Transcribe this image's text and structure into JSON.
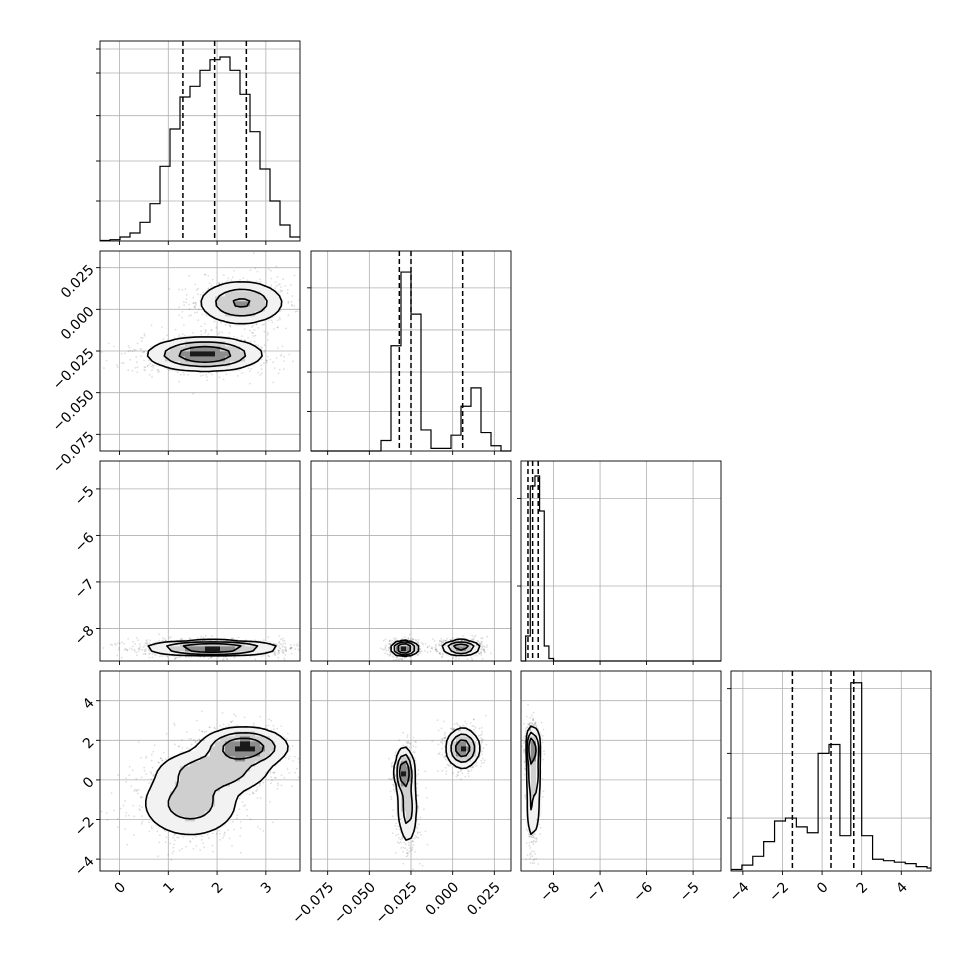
{
  "chart_data": {
    "type": "corner",
    "n_params": 4,
    "grid": true,
    "colors": {
      "line": "#000000",
      "grid": "#b0b0b0",
      "points": "#000000"
    },
    "params": [
      {
        "range": [
          -0.4,
          3.7
        ],
        "ticks": [
          0,
          1,
          2,
          3
        ],
        "tick_labels": [
          "0",
          "1",
          "2",
          "3"
        ]
      },
      {
        "range": [
          -0.085,
          0.035
        ],
        "ticks": [
          -0.075,
          -0.05,
          -0.025,
          0.0,
          0.025
        ],
        "tick_labels": [
          "−0.075",
          "−0.050",
          "−0.025",
          "0.000",
          "0.025"
        ]
      },
      {
        "range": [
          -8.7,
          -4.4
        ],
        "ticks": [
          -8,
          -7,
          -6,
          -5
        ],
        "tick_labels": [
          "−8",
          "−7",
          "−6",
          "−5"
        ]
      },
      {
        "range": [
          -4.6,
          5.5
        ],
        "ticks": [
          -4,
          -2,
          0,
          2,
          4
        ],
        "tick_labels": [
          "−4",
          "−2",
          "0",
          "2",
          "4"
        ]
      }
    ],
    "quantiles": [
      [
        1.3,
        1.95,
        2.6
      ],
      [
        -0.032,
        -0.025,
        0.006
      ],
      [
        -8.55,
        -8.45,
        -8.33
      ],
      [
        -1.5,
        0.45,
        1.6
      ]
    ],
    "histograms": [
      {
        "edges": [
          -0.4,
          -0.195,
          0.01,
          0.215,
          0.42,
          0.625,
          0.83,
          1.035,
          1.24,
          1.445,
          1.65,
          1.855,
          2.06,
          2.265,
          2.47,
          2.675,
          2.88,
          3.085,
          3.29,
          3.495,
          3.7
        ],
        "counts": [
          0.2,
          0.5,
          1.5,
          3,
          7,
          14,
          28,
          42,
          54,
          58,
          64,
          68,
          69,
          64,
          55,
          41,
          27,
          15,
          6,
          1.5
        ],
        "ymax": 75,
        "ygrid": [
          15,
          30,
          47,
          63,
          72
        ]
      },
      {
        "edges": [
          -0.085,
          -0.079,
          -0.073,
          -0.067,
          -0.061,
          -0.055,
          -0.049,
          -0.043,
          -0.037,
          -0.031,
          -0.025,
          -0.019,
          -0.013,
          -0.007,
          -0.001,
          0.005,
          0.011,
          0.017,
          0.023,
          0.029,
          0.035
        ],
        "counts": [
          0,
          0,
          0,
          0,
          0,
          0,
          0,
          4,
          40,
          68,
          52,
          8,
          1,
          1,
          6,
          17,
          24,
          7,
          2,
          0
        ],
        "ymax": 76,
        "ygrid": [
          15,
          30,
          46,
          62
        ]
      },
      {
        "edges": [
          -8.7,
          -8.6,
          -8.5,
          -8.4,
          -8.3,
          -8.2,
          -8.1,
          -8.0,
          -7.8,
          -7.5,
          -4.4
        ],
        "counts": [
          0,
          10,
          70,
          74,
          60,
          6,
          1,
          0,
          0,
          0,
          0
        ],
        "ymax": 80,
        "ygrid": [
          30,
          65
        ]
      },
      {
        "edges": [
          -4.6,
          -4.05,
          -3.5,
          -2.95,
          -2.4,
          -1.85,
          -1.3,
          -0.75,
          -0.2,
          0.35,
          0.9,
          1.45,
          2.0,
          2.55,
          3.1,
          3.65,
          4.2,
          4.75,
          5.3,
          5.5
        ],
        "counts": [
          0.5,
          2,
          5,
          10,
          17,
          18,
          15,
          13,
          40,
          43,
          12,
          64,
          12,
          4,
          3.5,
          3,
          2.5,
          1.5,
          1
        ],
        "ymax": 68,
        "ygrid": [
          18,
          40,
          62
        ]
      }
    ],
    "densities": [
      {
        "row": 1,
        "col": 0,
        "comps": [
          {
            "mx": 1.75,
            "my": -0.027,
            "sx": 0.52,
            "sy": 0.0045,
            "w": 0.6
          },
          {
            "mx": 2.5,
            "my": 0.004,
            "sx": 0.4,
            "sy": 0.006,
            "w": 0.4
          }
        ]
      },
      {
        "row": 2,
        "col": 0,
        "comps": [
          {
            "mx": 1.9,
            "my": -8.42,
            "sx": 0.58,
            "sy": 0.07,
            "w": 1.0
          }
        ]
      },
      {
        "row": 2,
        "col": 1,
        "comps": [
          {
            "mx": -0.029,
            "my": -8.43,
            "sx": 0.0035,
            "sy": 0.07,
            "w": 0.5
          },
          {
            "mx": 0.005,
            "my": -8.41,
            "sx": 0.005,
            "sy": 0.07,
            "w": 0.5
          }
        ]
      },
      {
        "row": 3,
        "col": 0,
        "comps": [
          {
            "mx": 1.45,
            "my": -1.2,
            "sx": 0.5,
            "sy": 0.85,
            "w": 0.35
          },
          {
            "mx": 1.95,
            "my": 0.45,
            "sx": 0.55,
            "sy": 0.55,
            "w": 0.3
          },
          {
            "mx": 2.55,
            "my": 1.65,
            "sx": 0.4,
            "sy": 0.45,
            "w": 0.35
          }
        ]
      },
      {
        "row": 3,
        "col": 1,
        "comps": [
          {
            "mx": -0.029,
            "my": 0.4,
            "sx": 0.0025,
            "sy": 0.55,
            "w": 0.32
          },
          {
            "mx": -0.027,
            "my": -1.4,
            "sx": 0.0028,
            "sy": 0.9,
            "w": 0.25
          },
          {
            "mx": 0.006,
            "my": 1.6,
            "sx": 0.0045,
            "sy": 0.45,
            "w": 0.43
          }
        ]
      },
      {
        "row": 3,
        "col": 2,
        "comps": [
          {
            "mx": -8.45,
            "my": 1.6,
            "sx": 0.06,
            "sy": 0.5,
            "w": 0.45
          },
          {
            "mx": -8.43,
            "my": 0.3,
            "sx": 0.05,
            "sy": 0.6,
            "w": 0.3
          },
          {
            "mx": -8.44,
            "my": -1.3,
            "sx": 0.05,
            "sy": 0.9,
            "w": 0.25
          }
        ]
      }
    ]
  }
}
